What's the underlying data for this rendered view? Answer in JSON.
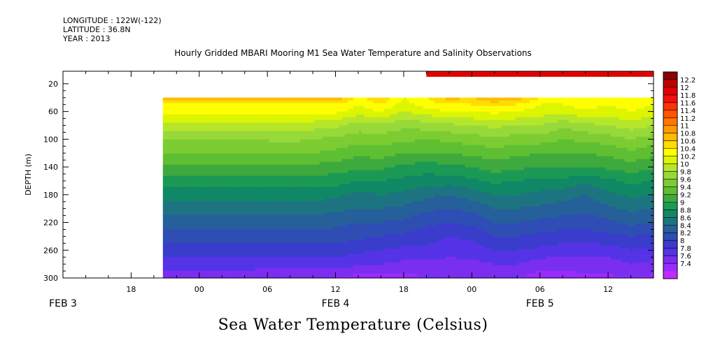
{
  "header": {
    "longitude": "LONGITUDE : 122W(-122)",
    "latitude": "LATITUDE : 36.8N",
    "year": "YEAR : 2013"
  },
  "chart_data": {
    "type": "heatmap",
    "title": "Hourly Gridded MBARI Mooring M1 Sea Water Temperature and Salinity Observations",
    "variable_title": "Sea Water Temperature (Celsius)",
    "ylabel": "DEPTH (m)",
    "y_axis": {
      "ylim": [
        300,
        2
      ],
      "inverted": true,
      "ticks": [
        20,
        60,
        100,
        140,
        180,
        220,
        260,
        300
      ]
    },
    "x_axis": {
      "units": "hours since 2013-02-03 00:00",
      "xlim": [
        12,
        64
      ],
      "hour_ticks": [
        {
          "x": 18,
          "label": "18"
        },
        {
          "x": 24,
          "label": "00"
        },
        {
          "x": 30,
          "label": "06"
        },
        {
          "x": 36,
          "label": "12"
        },
        {
          "x": 42,
          "label": "18"
        },
        {
          "x": 48,
          "label": "00"
        },
        {
          "x": 54,
          "label": "06"
        },
        {
          "x": 60,
          "label": "12"
        }
      ],
      "day_labels": [
        {
          "x": 12,
          "label": "FEB  3"
        },
        {
          "x": 36,
          "label": "FEB  4"
        },
        {
          "x": 54,
          "label": "FEB  5"
        }
      ]
    },
    "colorbar": {
      "levels": [
        "12.2",
        "12",
        "11.8",
        "11.6",
        "11.4",
        "11.2",
        "11",
        "10.8",
        "10.6",
        "10.4",
        "10.2",
        "10",
        "9.8",
        "9.6",
        "9.4",
        "9.2",
        "9",
        "8.8",
        "8.6",
        "8.4",
        "8.2",
        "8",
        "7.8",
        "7.6",
        "7.4"
      ],
      "colors": [
        "#8b0000",
        "#bd0000",
        "#e00000",
        "#f21010",
        "#ff3300",
        "#ff5500",
        "#ff7700",
        "#ff9900",
        "#ffbb00",
        "#ffdd00",
        "#ffff00",
        "#ddf500",
        "#b6e62a",
        "#98d93a",
        "#7ccc33",
        "#5fbf33",
        "#3eaa3e",
        "#1b9955",
        "#108866",
        "#1d7480",
        "#26609a",
        "#2e4eb3",
        "#3a3ccc",
        "#5533e6",
        "#7a2ef0",
        "#9a2bff",
        "#c02bff"
      ]
    },
    "data_start_x": 20.8,
    "surface_band": {
      "x_start": 44,
      "x_end": 64,
      "depth_top": 2,
      "depth_bottom": 10,
      "value": 12.1
    },
    "profile_times": [
      20.8,
      24,
      28,
      32,
      34,
      36,
      38,
      40,
      42,
      44,
      46,
      48,
      50,
      52,
      54,
      56,
      58,
      60,
      62,
      64
    ],
    "profile_depths": [
      40,
      50,
      60,
      80,
      100,
      120,
      140,
      160,
      180,
      200,
      220,
      240,
      260,
      280,
      300
    ],
    "temperature_profiles": [
      [
        11.0,
        10.6,
        10.5,
        10.1,
        9.8,
        9.6,
        9.35,
        9.1,
        8.9,
        8.7,
        8.5,
        8.3,
        8.1,
        7.9,
        7.65
      ],
      [
        11.0,
        10.6,
        10.5,
        10.1,
        9.8,
        9.6,
        9.35,
        9.1,
        8.9,
        8.7,
        8.5,
        8.3,
        8.1,
        7.9,
        7.65
      ],
      [
        11.0,
        10.6,
        10.5,
        10.1,
        9.8,
        9.6,
        9.35,
        9.1,
        8.9,
        8.7,
        8.5,
        8.3,
        8.1,
        7.9,
        7.65
      ],
      [
        10.9,
        10.6,
        10.5,
        10.15,
        9.85,
        9.6,
        9.35,
        9.1,
        8.9,
        8.7,
        8.5,
        8.3,
        8.1,
        7.9,
        7.6
      ],
      [
        10.9,
        10.6,
        10.45,
        10.1,
        9.8,
        9.6,
        9.35,
        9.1,
        8.9,
        8.7,
        8.5,
        8.3,
        8.1,
        7.9,
        7.6
      ],
      [
        11.0,
        10.6,
        10.45,
        10.05,
        9.75,
        9.55,
        9.3,
        9.1,
        8.85,
        8.65,
        8.45,
        8.3,
        8.1,
        7.9,
        7.6
      ],
      [
        10.5,
        10.4,
        10.3,
        9.9,
        9.7,
        9.45,
        9.25,
        9.0,
        8.75,
        8.6,
        8.4,
        8.25,
        8.05,
        7.85,
        7.5
      ],
      [
        10.8,
        10.6,
        10.4,
        9.95,
        9.7,
        9.5,
        9.25,
        9.0,
        8.8,
        8.6,
        8.4,
        8.2,
        8.0,
        7.8,
        7.5
      ],
      [
        10.4,
        10.3,
        10.2,
        9.85,
        9.65,
        9.4,
        9.15,
        8.95,
        8.75,
        8.55,
        8.35,
        8.15,
        7.95,
        7.75,
        7.5
      ],
      [
        10.6,
        10.5,
        10.3,
        9.9,
        9.6,
        9.4,
        9.1,
        8.9,
        8.65,
        8.45,
        8.25,
        8.1,
        7.95,
        7.75,
        7.6
      ],
      [
        10.9,
        10.6,
        10.4,
        9.95,
        9.65,
        9.4,
        9.15,
        8.9,
        8.6,
        8.4,
        8.2,
        8.0,
        7.85,
        7.75,
        7.65
      ],
      [
        10.8,
        10.6,
        10.4,
        10.0,
        9.7,
        9.45,
        9.2,
        8.95,
        8.7,
        8.45,
        8.25,
        8.05,
        7.9,
        7.75,
        7.6
      ],
      [
        11.0,
        10.7,
        10.45,
        10.05,
        9.75,
        9.5,
        9.3,
        9.05,
        8.8,
        8.6,
        8.4,
        8.2,
        8.0,
        7.8,
        7.65
      ],
      [
        10.9,
        10.6,
        10.4,
        10.0,
        9.7,
        9.45,
        9.25,
        9.0,
        8.8,
        8.6,
        8.4,
        8.2,
        8.0,
        7.8,
        7.6
      ],
      [
        10.6,
        10.4,
        10.3,
        10.0,
        9.7,
        9.4,
        9.2,
        8.95,
        8.75,
        8.55,
        8.35,
        8.15,
        7.95,
        7.7,
        7.5
      ],
      [
        10.5,
        10.4,
        10.3,
        9.85,
        9.6,
        9.4,
        9.2,
        8.95,
        8.7,
        8.5,
        8.3,
        8.1,
        7.9,
        7.7,
        7.5
      ],
      [
        10.6,
        10.5,
        10.35,
        9.95,
        9.65,
        9.4,
        9.2,
        8.85,
        8.6,
        8.45,
        8.3,
        8.1,
        7.9,
        7.7,
        7.55
      ],
      [
        10.5,
        10.4,
        10.3,
        10.0,
        9.7,
        9.45,
        9.25,
        8.95,
        8.75,
        8.55,
        8.35,
        8.15,
        7.9,
        7.7,
        7.55
      ],
      [
        10.6,
        10.5,
        10.4,
        10.1,
        9.8,
        9.55,
        9.3,
        9.05,
        8.85,
        8.65,
        8.45,
        8.2,
        8.0,
        7.8,
        7.6
      ],
      [
        10.5,
        10.4,
        10.3,
        10.0,
        9.7,
        9.45,
        9.25,
        9.0,
        8.8,
        8.6,
        8.4,
        8.15,
        7.95,
        7.75,
        7.55
      ]
    ]
  }
}
